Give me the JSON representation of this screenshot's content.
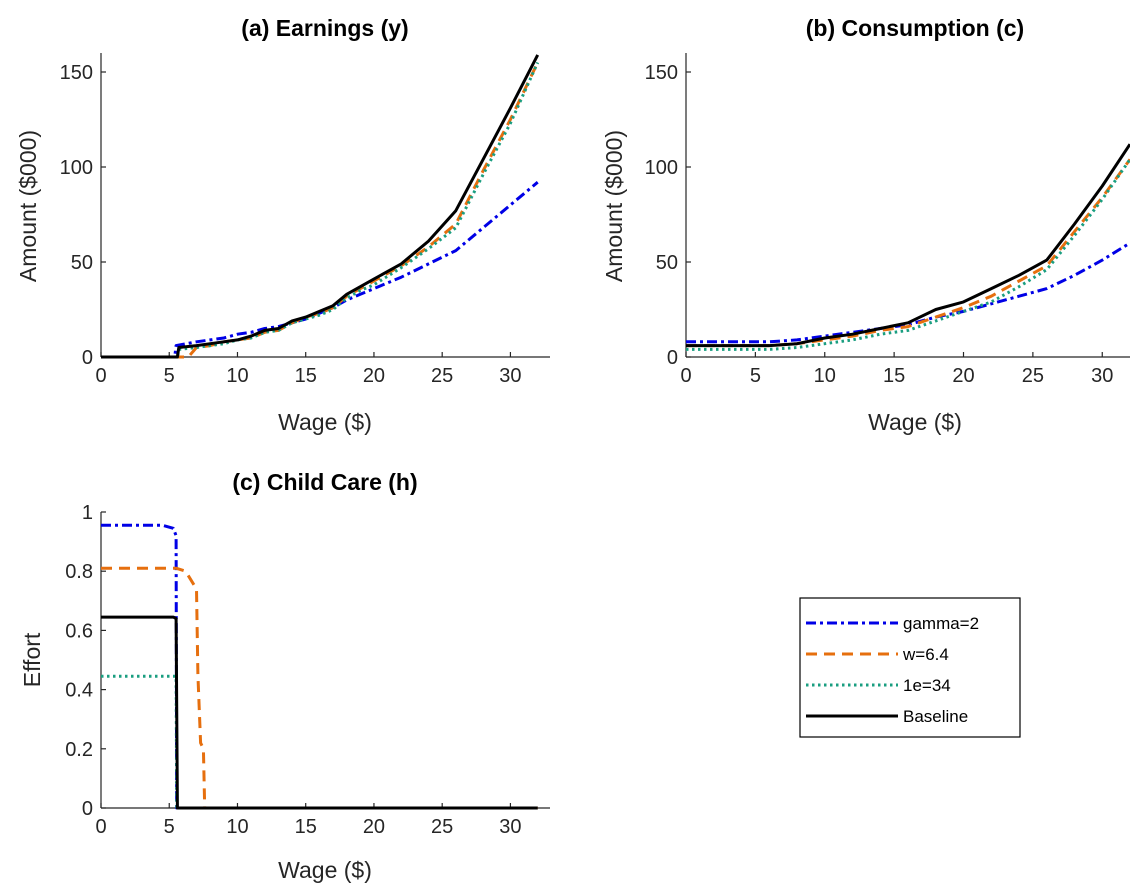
{
  "colors": {
    "gamma2": "#0000e6",
    "w64": "#e66f0e",
    "e34": "#1a9e80",
    "baseline": "#000000"
  },
  "legend": {
    "entries": [
      {
        "key": "gamma2",
        "label": "gamma=2"
      },
      {
        "key": "w64",
        "label": "w=6.4"
      },
      {
        "key": "e34",
        "label": "1e=34"
      },
      {
        "key": "baseline",
        "label": "Baseline"
      }
    ]
  },
  "chart_data": [
    {
      "type": "line",
      "title": "(a) Earnings (y)",
      "xlabel": "Wage ($)",
      "ylabel": "Amount ($000)",
      "xlim": [
        0,
        32
      ],
      "ylim": [
        0,
        160
      ],
      "xticks": [
        0,
        5,
        10,
        15,
        20,
        25,
        30
      ],
      "yticks": [
        0,
        50,
        100,
        150
      ],
      "series": [
        {
          "name": "gamma=2",
          "x": [
            0,
            5.4,
            5.5,
            7,
            8,
            9,
            10,
            11,
            12,
            13,
            14,
            15,
            16,
            17,
            18,
            19,
            20,
            22,
            24,
            26,
            28,
            30,
            32
          ],
          "y": [
            0,
            0,
            6,
            8,
            9,
            10,
            12,
            13,
            15,
            16,
            18,
            20,
            23,
            26,
            30,
            33,
            36,
            42,
            49,
            56,
            68,
            80,
            92
          ]
        },
        {
          "name": "w=6.4",
          "x": [
            0,
            5.5,
            6.4,
            7,
            8,
            9,
            10,
            11,
            12,
            13,
            14,
            15,
            16,
            17,
            18,
            19,
            20,
            22,
            24,
            26,
            28,
            30,
            32
          ],
          "y": [
            0,
            0,
            0,
            5,
            6,
            8,
            9,
            10,
            13,
            14,
            18,
            21,
            23,
            26,
            32,
            36,
            40,
            48,
            58,
            70,
            98,
            125,
            155
          ]
        },
        {
          "name": "1e=34",
          "x": [
            0,
            5.6,
            5.7,
            7,
            8,
            9,
            10,
            11,
            12,
            13,
            14,
            15,
            16,
            17,
            18,
            19,
            20,
            22,
            24,
            26,
            28,
            30,
            32
          ],
          "y": [
            0,
            0,
            4,
            5,
            6,
            7,
            9,
            10,
            13,
            14,
            18,
            20,
            22,
            25,
            31,
            35,
            38,
            47,
            57,
            68,
            96,
            123,
            155
          ]
        },
        {
          "name": "Baseline",
          "x": [
            0,
            5.6,
            5.7,
            7,
            8,
            9,
            10,
            11,
            12,
            13,
            14,
            15,
            16,
            17,
            18,
            19,
            20,
            22,
            24,
            26,
            28,
            30,
            32
          ],
          "y": [
            0,
            0,
            5,
            6,
            7,
            8,
            9,
            11,
            14,
            15,
            19,
            21,
            24,
            27,
            33,
            37,
            41,
            49,
            61,
            77,
            104,
            131,
            159
          ]
        }
      ]
    },
    {
      "type": "line",
      "title": "(b) Consumption (c)",
      "xlabel": "Wage ($)",
      "ylabel": "Amount ($000)",
      "xlim": [
        0,
        32
      ],
      "ylim": [
        0,
        160
      ],
      "xticks": [
        0,
        5,
        10,
        15,
        20,
        25,
        30
      ],
      "yticks": [
        0,
        50,
        100,
        150
      ],
      "series": [
        {
          "name": "gamma=2",
          "x": [
            0,
            2,
            4,
            6,
            8,
            10,
            12,
            14,
            16,
            18,
            20,
            22,
            24,
            26,
            28,
            30,
            32
          ],
          "y": [
            8,
            8,
            8,
            8,
            9,
            11,
            13,
            15,
            17,
            21,
            24,
            28,
            32,
            36,
            43,
            51,
            60
          ]
        },
        {
          "name": "w=6.4",
          "x": [
            0,
            2,
            4,
            6,
            8,
            10,
            12,
            14,
            16,
            18,
            20,
            22,
            24,
            26,
            28,
            30,
            32
          ],
          "y": [
            6,
            6,
            6,
            6,
            7,
            9,
            11,
            14,
            16,
            21,
            26,
            32,
            40,
            48,
            66,
            84,
            104
          ]
        },
        {
          "name": "1e=34",
          "x": [
            0,
            2,
            4,
            6,
            8,
            10,
            12,
            14,
            16,
            18,
            20,
            22,
            24,
            26,
            28,
            30,
            32
          ],
          "y": [
            4,
            4,
            4,
            4,
            5,
            7,
            9,
            12,
            14,
            19,
            24,
            29,
            37,
            46,
            64,
            83,
            104
          ]
        },
        {
          "name": "Baseline",
          "x": [
            0,
            2,
            4,
            6,
            8,
            10,
            12,
            14,
            16,
            18,
            20,
            22,
            24,
            26,
            28,
            30,
            32
          ],
          "y": [
            6,
            6,
            6,
            6,
            7,
            10,
            12,
            15,
            18,
            25,
            29,
            36,
            43,
            51,
            70,
            90,
            112
          ]
        }
      ]
    },
    {
      "type": "line",
      "title": "(c) Child Care (h)",
      "xlabel": "Wage ($)",
      "ylabel": "Effort",
      "xlim": [
        0,
        32
      ],
      "ylim": [
        0,
        1
      ],
      "xticks": [
        0,
        5,
        10,
        15,
        20,
        25,
        30
      ],
      "yticks": [
        0,
        0.2,
        0.4,
        0.6,
        0.8,
        1
      ],
      "series": [
        {
          "name": "gamma=2",
          "x": [
            0,
            4.5,
            5.3,
            5.5,
            5.55,
            32
          ],
          "y": [
            0.955,
            0.955,
            0.945,
            0.92,
            0,
            0
          ]
        },
        {
          "name": "w=6.4",
          "x": [
            0,
            5.5,
            6.2,
            7.0,
            7.1,
            7.3,
            7.5,
            7.6,
            32
          ],
          "y": [
            0.81,
            0.81,
            0.8,
            0.74,
            0.45,
            0.22,
            0.2,
            0,
            0
          ]
        },
        {
          "name": "1e=34",
          "x": [
            0,
            5.5,
            5.55,
            32
          ],
          "y": [
            0.445,
            0.445,
            0,
            0
          ]
        },
        {
          "name": "Baseline",
          "x": [
            0,
            5.3,
            5.5,
            5.6,
            32
          ],
          "y": [
            0.645,
            0.645,
            0.64,
            0,
            0
          ]
        }
      ]
    }
  ]
}
